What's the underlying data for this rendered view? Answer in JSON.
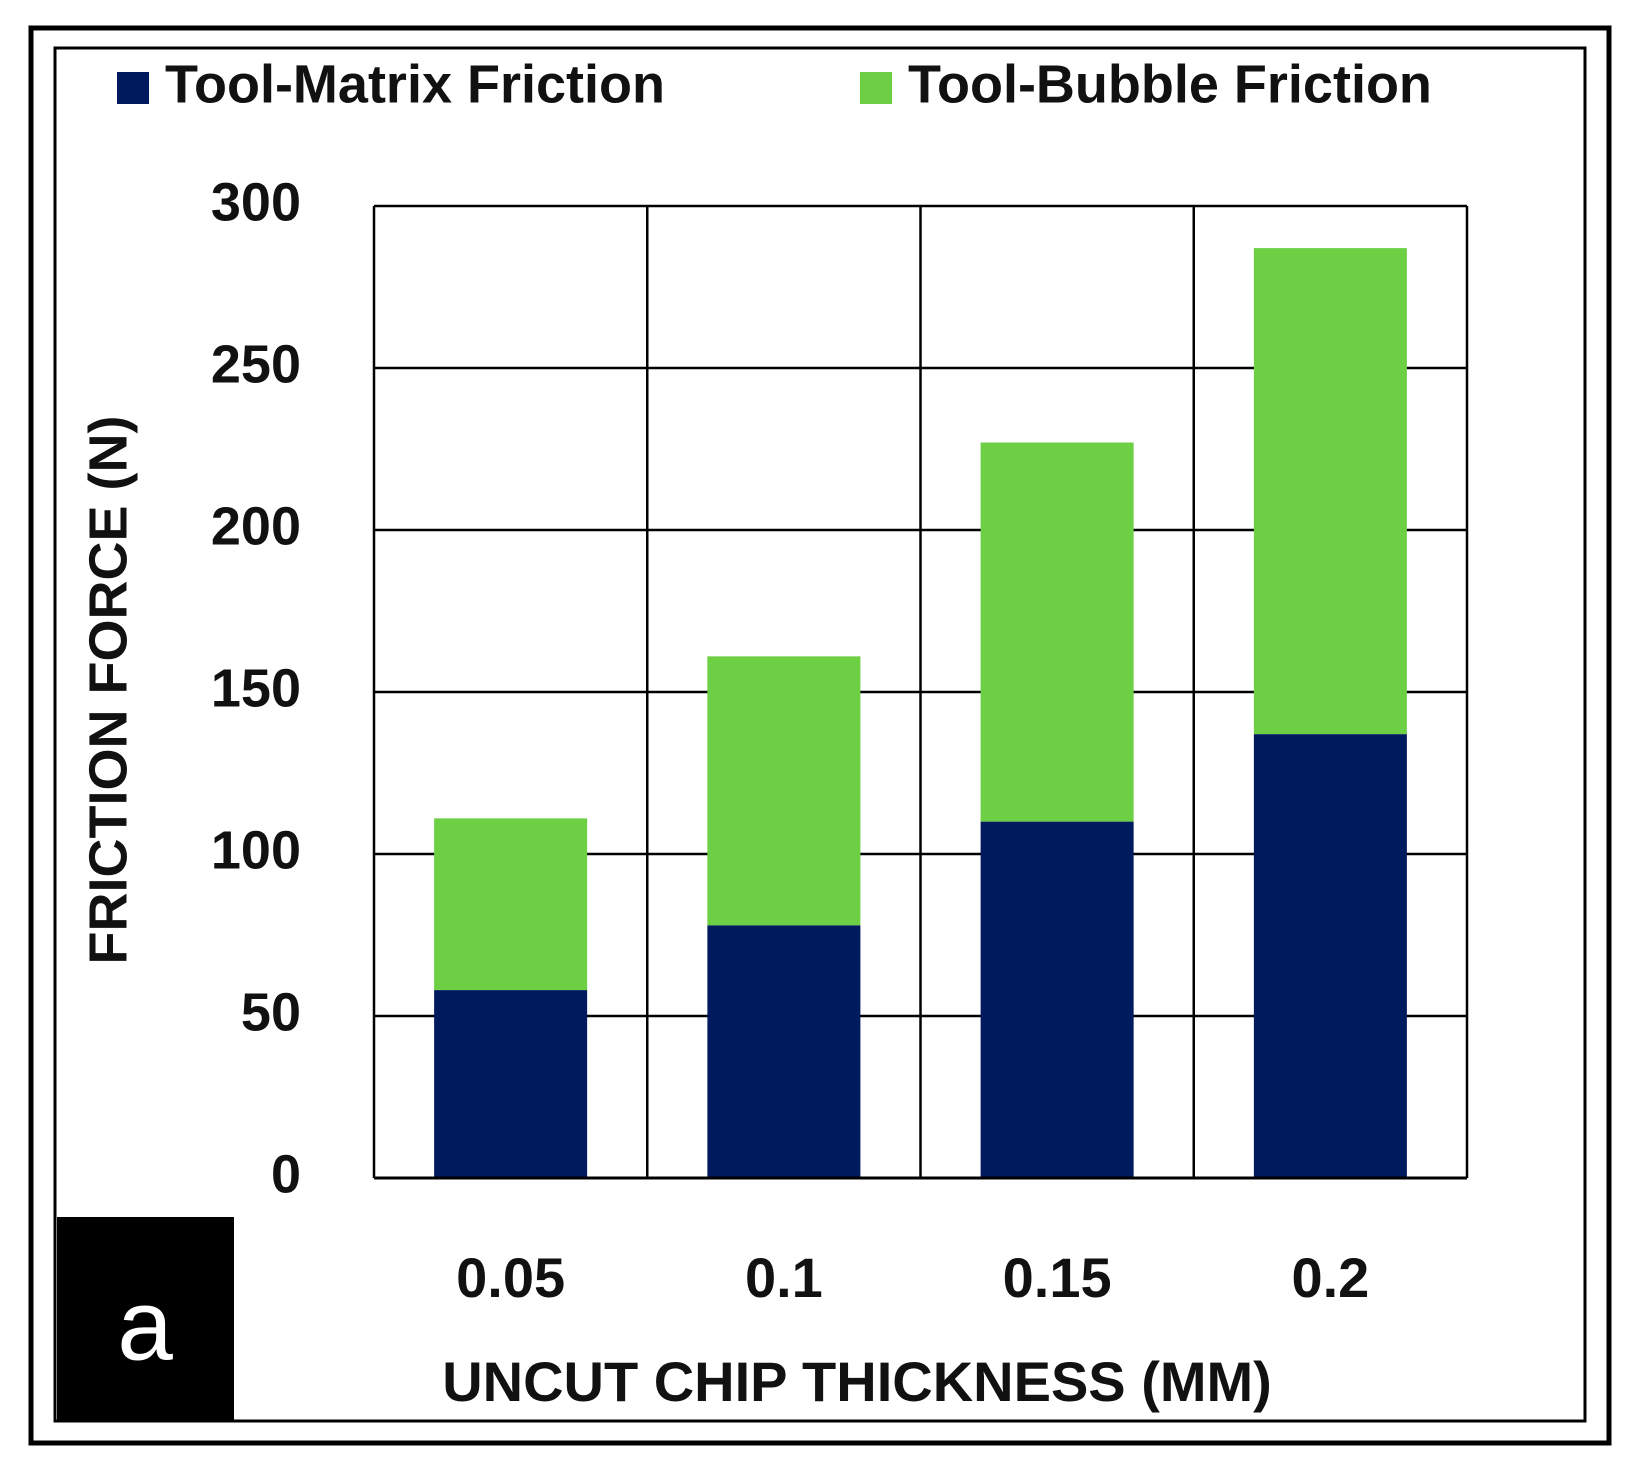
{
  "chart_data": {
    "type": "stacked_bar",
    "categories": [
      "0.05",
      "0.1",
      "0.15",
      "0.2"
    ],
    "series": [
      {
        "name": "Tool-Matrix Friction",
        "color": "#001a5e",
        "values": [
          58,
          78,
          110,
          137
        ]
      },
      {
        "name": "Tool-Bubble Friction",
        "color": "#6ccf44",
        "values": [
          53,
          83,
          117,
          150
        ]
      }
    ],
    "x_label": "UNCUT CHIP THICKNESS (MM)",
    "y_label": "FRICTION FORCE (N)",
    "ylim": [
      0,
      300
    ],
    "yticks": [
      0,
      50,
      100,
      150,
      200,
      250,
      300
    ],
    "grid": true,
    "legend": "top",
    "panel_label": "a"
  }
}
